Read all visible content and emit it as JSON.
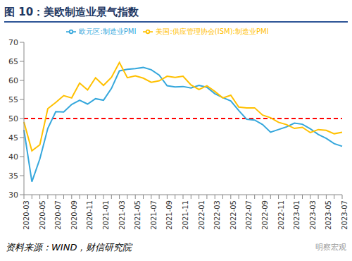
{
  "chart_data": {
    "type": "line",
    "title": "图 10：美欧制造业景气指数",
    "source": "资料来源：WIND，财信研究院",
    "annotations": [
      {
        "text": "明察宏观"
      }
    ],
    "categories": [
      "2020-03",
      null,
      "2020-05",
      null,
      "2020-07",
      null,
      "2020-09",
      null,
      "2020-11",
      null,
      "2021-01",
      null,
      "2021-03",
      null,
      "2021-05",
      null,
      "2021-07",
      null,
      "2021-09",
      null,
      "2021-11",
      null,
      "2022-01",
      null,
      "2022-03",
      null,
      "2022-05",
      null,
      "2022-07",
      null,
      "2022-09",
      null,
      "2022-11",
      null,
      "2023-01",
      null,
      "2023-03",
      null,
      "2023-05",
      null,
      "2023-07"
    ],
    "series": [
      {
        "name": "欧元区:制造业PMI",
        "color": "#35a7dc",
        "values": [
          47.0,
          33.4,
          39.4,
          47.4,
          51.8,
          51.7,
          53.7,
          54.8,
          53.8,
          55.2,
          54.8,
          57.9,
          62.5,
          62.9,
          63.1,
          63.4,
          62.8,
          61.4,
          58.6,
          58.3,
          58.4,
          58.0,
          58.7,
          58.2,
          56.5,
          55.5,
          54.6,
          52.1,
          49.8,
          49.6,
          48.4,
          46.4,
          47.1,
          47.8,
          48.8,
          48.5,
          47.3,
          45.8,
          44.8,
          43.4,
          42.7
        ]
      },
      {
        "name": "美国:供应管理协会(ISM):制造业PMI",
        "color": "#ffc000",
        "values": [
          49.1,
          41.5,
          43.1,
          52.6,
          54.2,
          56.0,
          55.4,
          59.3,
          57.5,
          60.7,
          58.7,
          60.8,
          64.7,
          60.7,
          61.2,
          60.6,
          59.5,
          59.9,
          61.1,
          60.8,
          61.1,
          58.8,
          57.6,
          58.6,
          57.1,
          55.4,
          56.1,
          53.0,
          52.8,
          52.8,
          50.9,
          50.2,
          49.0,
          48.4,
          47.4,
          47.7,
          46.3,
          47.1,
          46.9,
          46.0,
          46.4
        ]
      }
    ],
    "hline": {
      "value": 50,
      "color": "#ff0000",
      "line_style": "dashed"
    },
    "ylim": [
      30,
      70
    ],
    "yticks": [
      30,
      35,
      40,
      45,
      50,
      55,
      60,
      65,
      70
    ],
    "grid": false
  }
}
